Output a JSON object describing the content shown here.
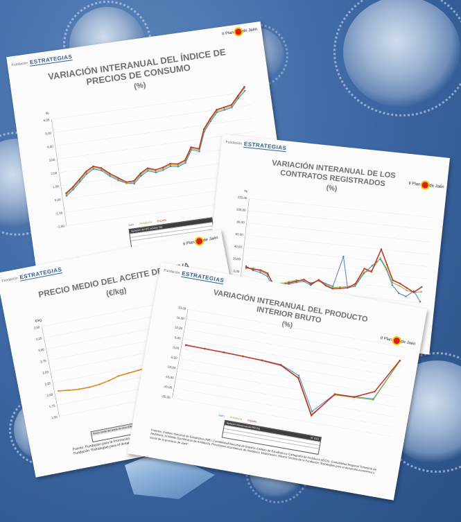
{
  "cards": {
    "ipc": {
      "title": "VARIACIÓN INTERANUAL DEL ÍNDICE DE PRECIOS DE CONSUMO",
      "unit": "(%)",
      "y_label": "%",
      "y_ticks": [
        "6,00",
        "5,00",
        "4,00",
        "3,00",
        "2,00",
        "1,00",
        "0,00",
        "-1,00",
        "-2,00"
      ],
      "legend": [
        "Jaén",
        "Andalucía",
        "España"
      ],
      "table_title": "Variación del IPC octubre (%)",
      "source": "Fuente: Instituto Nacional de Estadística (INE), Índice de Precios de Consumo. Elaboración de la Fundación \"Estrategias para el desarrollo económico y social de la provincia de Jaén\"."
    },
    "contratos": {
      "title": "VARIACIÓN INTERANUAL DE LOS CONTRATOS REGISTRADOS",
      "unit": "(%)",
      "y_label": "%",
      "y_ticks": [
        "120,00",
        "100,00",
        "80,00",
        "60,00",
        "40,00",
        "20,00",
        "0,00",
        "-20,00",
        "-40,00"
      ]
    },
    "aceite": {
      "title": "PRECIO MEDIO DEL ACEITE DE OLIVA",
      "unit": "(€/kg)",
      "y_label": "€/kg",
      "y_ticks": [
        "3,50",
        "3,25",
        "3,00",
        "2,75",
        "2,50",
        "2,25",
        "2,00",
        "1,75",
        "1,50"
      ],
      "table_title": "Precio medio del aceite de oliva (€/kg)",
      "source": "Fuente: Fundación para la Promoción y el Desarrollo del Olivar y del Aceite de Oliva. Elaboración de la Fundación \"Estrategias para el desarrollo económico y social de la provincia de Jaén\"."
    },
    "pib": {
      "title": "VARIACIÓN INTERANUAL DEL PRODUCTO INTERIOR BRUTO",
      "unit": "(%)",
      "y_ticks": [
        "20,00",
        "15,00",
        "10,00",
        "5,00",
        "0,00",
        "-5,00",
        "-10,00",
        "-15,00",
        "-20,00",
        "-25,00"
      ],
      "legend": [
        "Jaén",
        "Andalucía",
        "España"
      ],
      "table_title": "Variación interanual del PIB (%)",
      "table_col": "3T 2021",
      "source": "Fuentes: Instituto Nacional de Estadística (INE), Contabilidad Nacional de España; Instituto de Estadística y Cartografía de Andalucía (IECA), Contabilidad Regional Trimestral de Andalucía; Analistas Económicos de Andalucía, Previsiones económicas de Andalucía. Elaboración: Oficina Técnica de la Fundación \"Estrategias para el desarrollo económico y social de la provincia de Jaén\"."
    }
  },
  "branding": {
    "fundacion": "Fundación",
    "brand": "ESTRATEGIAS",
    "plan_line1": "II Plan",
    "plan_line2": "Estratégico",
    "plan_line3": "de Jaén"
  },
  "colors": {
    "background": "#3f6aa6",
    "jaen": "#4a7fc1",
    "andalucia": "#8cb83a",
    "espana": "#c0392b",
    "aceite": "#e08a1e"
  },
  "chart_data": [
    {
      "type": "line",
      "title": "VARIACIÓN INTERANUAL DEL ÍNDICE DE PRECIOS DE CONSUMO",
      "ylabel": "%",
      "ylim": [
        -2,
        6
      ],
      "series": [
        {
          "name": "Jaén",
          "values": [
            0.2,
            0.6,
            1.1,
            1.6,
            1.9,
            1.7,
            1.2,
            0.8,
            0.5,
            0.4,
            0.9,
            1.2,
            1.0,
            1.1,
            1.3,
            1.2,
            1.4,
            2.3,
            2.1,
            3.5,
            4.2,
            4.8,
            4.9,
            5.0,
            5.6,
            6.1
          ]
        },
        {
          "name": "Andalucía",
          "values": [
            0.3,
            0.7,
            1.2,
            1.7,
            2.0,
            1.8,
            1.3,
            0.9,
            0.5,
            0.5,
            1.0,
            1.3,
            1.1,
            1.2,
            1.4,
            1.3,
            1.5,
            2.4,
            2.2,
            3.6,
            4.3,
            4.9,
            5.0,
            5.1,
            5.7,
            6.3
          ]
        },
        {
          "name": "España",
          "values": [
            0.4,
            0.8,
            1.3,
            1.8,
            2.1,
            1.9,
            1.4,
            1.0,
            0.6,
            0.6,
            1.1,
            1.4,
            1.2,
            1.3,
            1.5,
            1.4,
            1.6,
            2.5,
            2.3,
            3.7,
            4.4,
            5.0,
            5.1,
            5.2,
            5.8,
            6.4
          ]
        }
      ]
    },
    {
      "type": "line",
      "title": "VARIACIÓN INTERANUAL DE LOS CONTRATOS REGISTRADOS",
      "ylabel": "%",
      "ylim": [
        -40,
        120
      ],
      "series": [
        {
          "name": "Jaén",
          "values": [
            10,
            4,
            2,
            -3,
            -22,
            -20,
            -12,
            -8,
            -5,
            -10,
            0,
            -5,
            -8,
            42,
            -8,
            -4,
            18,
            32,
            44,
            28,
            4,
            -8,
            -12,
            -2,
            -18
          ]
        },
        {
          "name": "Andalucía",
          "values": [
            6,
            8,
            4,
            0,
            -14,
            -12,
            -8,
            -4,
            -4,
            -6,
            -2,
            -6,
            -10,
            -8,
            -6,
            -2,
            20,
            24,
            46,
            30,
            8,
            4,
            -2,
            -4,
            -2
          ]
        },
        {
          "name": "España",
          "values": [
            8,
            6,
            6,
            2,
            -18,
            -14,
            -10,
            -6,
            -2,
            -8,
            0,
            -8,
            -12,
            -10,
            -8,
            0,
            26,
            22,
            60,
            36,
            12,
            8,
            2,
            -4,
            6
          ]
        }
      ]
    },
    {
      "type": "line",
      "title": "PRECIO MEDIO DEL ACEITE DE OLIVA",
      "ylabel": "€/kg",
      "ylim": [
        1.5,
        3.5
      ],
      "series": [
        {
          "values": [
            2.05,
            2.02,
            2.0,
            2.0,
            2.02,
            2.06,
            2.12,
            2.14,
            2.16,
            2.18,
            2.2,
            2.24,
            2.28,
            2.36,
            2.48,
            2.62,
            2.78
          ]
        }
      ]
    },
    {
      "type": "line",
      "title": "VARIACIÓN INTERANUAL DEL PRODUCTO INTERIOR BRUTO",
      "ylim": [
        -25,
        20
      ],
      "series": [
        {
          "name": "Jaén",
          "values": [
            2.0,
            2.1,
            1.8,
            1.6,
            1.4,
            0.8,
            -3.0,
            -19.5,
            -9.0,
            -8.6,
            -8.0,
            13.0
          ]
        },
        {
          "name": "Andalucía",
          "values": [
            2.1,
            2.0,
            1.9,
            1.7,
            1.3,
            0.6,
            -4.0,
            -21.0,
            -9.5,
            -9.0,
            -8.5,
            12.8
          ]
        },
        {
          "name": "España",
          "values": [
            2.2,
            2.0,
            1.9,
            1.6,
            1.2,
            0.5,
            -4.3,
            -21.6,
            -9.0,
            -8.8,
            -4.3,
            13.2
          ]
        }
      ]
    }
  ]
}
